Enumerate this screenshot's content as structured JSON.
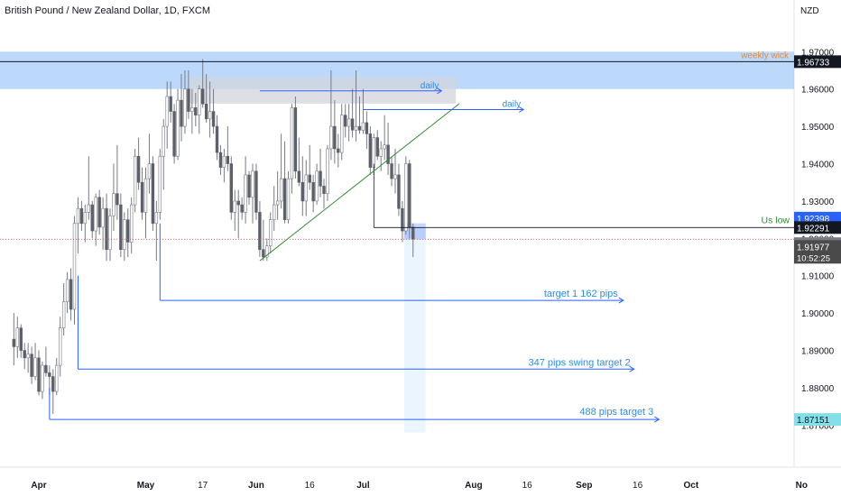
{
  "header": {
    "symbol_title": "British Pound / New Zealand Dollar, 1D, FXCM",
    "currency": "NZD"
  },
  "colors": {
    "bull": "#ffffff",
    "bear": "#5d606b",
    "wick": "#787b86",
    "axis_text": "#131722",
    "zone_blue": "#90bff9",
    "zone_grey": "#d1d4dc",
    "line_blue": "#2962ff",
    "line_green": "#388e3c",
    "text_blue": "#2f8ce0",
    "text_orange": "#e88a2e",
    "price_blue_label": "#2962ff",
    "price_black_label": "#131722",
    "price_grey_label": "#787b86",
    "price_dark_grey_label": "#4a4a4a",
    "target_label_bg": "#84e0e8"
  },
  "chart_data": {
    "type": "candlestick",
    "title": "British Pound / New Zealand Dollar, 1D, FXCM",
    "y_unit": "NZD",
    "y_ticks": [
      "1.97000",
      "1.96000",
      "1.95000",
      "1.94000",
      "1.93000",
      "1.92000",
      "1.91000",
      "1.90000",
      "1.89000",
      "1.88000",
      "1.87000"
    ],
    "ylim": [
      1.8655,
      1.9737
    ],
    "x_ticks": [
      "Apr",
      "May",
      "17",
      "Jun",
      "16",
      "Jul",
      "Aug",
      "16",
      "Sep",
      "16",
      "Oct",
      "No"
    ],
    "x_tick_days": [
      0,
      30,
      46,
      61,
      76,
      91,
      122,
      137,
      153,
      168,
      183,
      214
    ],
    "candles": [
      {
        "d": -7,
        "o": 1.893,
        "h": 1.9,
        "l": 1.886,
        "c": 1.891
      },
      {
        "d": -6,
        "o": 1.891,
        "h": 1.899,
        "l": 1.888,
        "c": 1.896
      },
      {
        "d": -5,
        "o": 1.896,
        "h": 1.897,
        "l": 1.888,
        "c": 1.89
      },
      {
        "d": -4,
        "o": 1.89,
        "h": 1.892,
        "l": 1.885,
        "c": 1.888
      },
      {
        "d": -3,
        "o": 1.888,
        "h": 1.892,
        "l": 1.884,
        "c": 1.889
      },
      {
        "d": -2,
        "o": 1.889,
        "h": 1.891,
        "l": 1.881,
        "c": 1.883
      },
      {
        "d": -1,
        "o": 1.883,
        "h": 1.892,
        "l": 1.882,
        "c": 1.888
      },
      {
        "d": 0,
        "o": 1.888,
        "h": 1.89,
        "l": 1.878,
        "c": 1.879
      },
      {
        "d": 1,
        "o": 1.879,
        "h": 1.887,
        "l": 1.877,
        "c": 1.886
      },
      {
        "d": 2,
        "o": 1.886,
        "h": 1.891,
        "l": 1.883,
        "c": 1.884
      },
      {
        "d": 3,
        "o": 1.884,
        "h": 1.886,
        "l": 1.878,
        "c": 1.883
      },
      {
        "d": 4,
        "o": 1.883,
        "h": 1.885,
        "l": 1.873,
        "c": 1.879
      },
      {
        "d": 5,
        "o": 1.879,
        "h": 1.888,
        "l": 1.878,
        "c": 1.886
      },
      {
        "d": 6,
        "o": 1.886,
        "h": 1.899,
        "l": 1.883,
        "c": 1.896
      },
      {
        "d": 7,
        "o": 1.896,
        "h": 1.908,
        "l": 1.894,
        "c": 1.903
      },
      {
        "d": 8,
        "o": 1.903,
        "h": 1.911,
        "l": 1.9,
        "c": 1.909
      },
      {
        "d": 9,
        "o": 1.909,
        "h": 1.912,
        "l": 1.898,
        "c": 1.901
      },
      {
        "d": 10,
        "o": 1.901,
        "h": 1.926,
        "l": 1.897,
        "c": 1.924
      },
      {
        "d": 11,
        "o": 1.924,
        "h": 1.931,
        "l": 1.916,
        "c": 1.928
      },
      {
        "d": 12,
        "o": 1.928,
        "h": 1.93,
        "l": 1.922,
        "c": 1.924
      },
      {
        "d": 13,
        "o": 1.924,
        "h": 1.929,
        "l": 1.919,
        "c": 1.927
      },
      {
        "d": 14,
        "o": 1.927,
        "h": 1.942,
        "l": 1.925,
        "c": 1.929
      },
      {
        "d": 15,
        "o": 1.929,
        "h": 1.93,
        "l": 1.92,
        "c": 1.922
      },
      {
        "d": 16,
        "o": 1.922,
        "h": 1.932,
        "l": 1.918,
        "c": 1.931
      },
      {
        "d": 17,
        "o": 1.931,
        "h": 1.933,
        "l": 1.921,
        "c": 1.923
      },
      {
        "d": 18,
        "o": 1.923,
        "h": 1.931,
        "l": 1.917,
        "c": 1.928
      },
      {
        "d": 19,
        "o": 1.928,
        "h": 1.932,
        "l": 1.914,
        "c": 1.917
      },
      {
        "d": 20,
        "o": 1.917,
        "h": 1.928,
        "l": 1.914,
        "c": 1.926
      },
      {
        "d": 21,
        "o": 1.926,
        "h": 1.94,
        "l": 1.922,
        "c": 1.932
      },
      {
        "d": 22,
        "o": 1.932,
        "h": 1.945,
        "l": 1.925,
        "c": 1.929
      },
      {
        "d": 23,
        "o": 1.929,
        "h": 1.932,
        "l": 1.915,
        "c": 1.917
      },
      {
        "d": 24,
        "o": 1.917,
        "h": 1.927,
        "l": 1.914,
        "c": 1.925
      },
      {
        "d": 25,
        "o": 1.925,
        "h": 1.928,
        "l": 1.915,
        "c": 1.919
      },
      {
        "d": 26,
        "o": 1.919,
        "h": 1.931,
        "l": 1.916,
        "c": 1.929
      },
      {
        "d": 27,
        "o": 1.929,
        "h": 1.944,
        "l": 1.927,
        "c": 1.942
      },
      {
        "d": 28,
        "o": 1.942,
        "h": 1.947,
        "l": 1.933,
        "c": 1.935
      },
      {
        "d": 29,
        "o": 1.935,
        "h": 1.939,
        "l": 1.925,
        "c": 1.927
      },
      {
        "d": 30,
        "o": 1.927,
        "h": 1.939,
        "l": 1.92,
        "c": 1.936
      },
      {
        "d": 31,
        "o": 1.936,
        "h": 1.948,
        "l": 1.932,
        "c": 1.94
      },
      {
        "d": 32,
        "o": 1.94,
        "h": 1.942,
        "l": 1.922,
        "c": 1.924
      },
      {
        "d": 33,
        "o": 1.924,
        "h": 1.93,
        "l": 1.914,
        "c": 1.927
      },
      {
        "d": 34,
        "o": 1.927,
        "h": 1.944,
        "l": 1.925,
        "c": 1.942
      },
      {
        "d": 35,
        "o": 1.942,
        "h": 1.952,
        "l": 1.933,
        "c": 1.95
      },
      {
        "d": 36,
        "o": 1.95,
        "h": 1.962,
        "l": 1.944,
        "c": 1.958
      },
      {
        "d": 37,
        "o": 1.958,
        "h": 1.962,
        "l": 1.951,
        "c": 1.954
      },
      {
        "d": 38,
        "o": 1.954,
        "h": 1.956,
        "l": 1.94,
        "c": 1.942
      },
      {
        "d": 39,
        "o": 1.942,
        "h": 1.96,
        "l": 1.941,
        "c": 1.957
      },
      {
        "d": 40,
        "o": 1.957,
        "h": 1.964,
        "l": 1.946,
        "c": 1.95
      },
      {
        "d": 41,
        "o": 1.95,
        "h": 1.965,
        "l": 1.948,
        "c": 1.96
      },
      {
        "d": 42,
        "o": 1.96,
        "h": 1.965,
        "l": 1.952,
        "c": 1.954
      },
      {
        "d": 43,
        "o": 1.954,
        "h": 1.96,
        "l": 1.948,
        "c": 1.955
      },
      {
        "d": 44,
        "o": 1.955,
        "h": 1.959,
        "l": 1.95,
        "c": 1.953
      },
      {
        "d": 45,
        "o": 1.953,
        "h": 1.961,
        "l": 1.948,
        "c": 1.96
      },
      {
        "d": 46,
        "o": 1.96,
        "h": 1.968,
        "l": 1.955,
        "c": 1.956
      },
      {
        "d": 47,
        "o": 1.956,
        "h": 1.964,
        "l": 1.951,
        "c": 1.952
      },
      {
        "d": 48,
        "o": 1.952,
        "h": 1.962,
        "l": 1.947,
        "c": 1.954
      },
      {
        "d": 49,
        "o": 1.954,
        "h": 1.96,
        "l": 1.948,
        "c": 1.95
      },
      {
        "d": 50,
        "o": 1.95,
        "h": 1.953,
        "l": 1.941,
        "c": 1.943
      },
      {
        "d": 51,
        "o": 1.943,
        "h": 1.945,
        "l": 1.937,
        "c": 1.939
      },
      {
        "d": 52,
        "o": 1.939,
        "h": 1.944,
        "l": 1.935,
        "c": 1.942
      },
      {
        "d": 53,
        "o": 1.942,
        "h": 1.95,
        "l": 1.938,
        "c": 1.94
      },
      {
        "d": 54,
        "o": 1.94,
        "h": 1.942,
        "l": 1.925,
        "c": 1.927
      },
      {
        "d": 55,
        "o": 1.927,
        "h": 1.933,
        "l": 1.922,
        "c": 1.93
      },
      {
        "d": 56,
        "o": 1.93,
        "h": 1.933,
        "l": 1.92,
        "c": 1.929
      },
      {
        "d": 57,
        "o": 1.929,
        "h": 1.931,
        "l": 1.925,
        "c": 1.927
      },
      {
        "d": 58,
        "o": 1.927,
        "h": 1.942,
        "l": 1.924,
        "c": 1.937
      },
      {
        "d": 59,
        "o": 1.937,
        "h": 1.938,
        "l": 1.929,
        "c": 1.931
      },
      {
        "d": 60,
        "o": 1.931,
        "h": 1.94,
        "l": 1.924,
        "c": 1.938
      },
      {
        "d": 61,
        "o": 1.938,
        "h": 1.94,
        "l": 1.925,
        "c": 1.927
      },
      {
        "d": 62,
        "o": 1.927,
        "h": 1.93,
        "l": 1.915,
        "c": 1.917
      },
      {
        "d": 63,
        "o": 1.917,
        "h": 1.925,
        "l": 1.914,
        "c": 1.915
      },
      {
        "d": 64,
        "o": 1.915,
        "h": 1.92,
        "l": 1.914,
        "c": 1.918
      },
      {
        "d": 65,
        "o": 1.918,
        "h": 1.927,
        "l": 1.916,
        "c": 1.925
      },
      {
        "d": 66,
        "o": 1.925,
        "h": 1.934,
        "l": 1.922,
        "c": 1.929
      },
      {
        "d": 67,
        "o": 1.929,
        "h": 1.938,
        "l": 1.925,
        "c": 1.93
      },
      {
        "d": 68,
        "o": 1.93,
        "h": 1.948,
        "l": 1.928,
        "c": 1.936
      },
      {
        "d": 69,
        "o": 1.936,
        "h": 1.946,
        "l": 1.924,
        "c": 1.925
      },
      {
        "d": 70,
        "o": 1.925,
        "h": 1.938,
        "l": 1.924,
        "c": 1.936
      },
      {
        "d": 71,
        "o": 1.936,
        "h": 1.956,
        "l": 1.932,
        "c": 1.955
      },
      {
        "d": 72,
        "o": 1.955,
        "h": 1.958,
        "l": 1.936,
        "c": 1.938
      },
      {
        "d": 73,
        "o": 1.938,
        "h": 1.947,
        "l": 1.934,
        "c": 1.935
      },
      {
        "d": 74,
        "o": 1.935,
        "h": 1.942,
        "l": 1.926,
        "c": 1.93
      },
      {
        "d": 75,
        "o": 1.93,
        "h": 1.941,
        "l": 1.926,
        "c": 1.937
      },
      {
        "d": 76,
        "o": 1.937,
        "h": 1.945,
        "l": 1.933,
        "c": 1.935
      },
      {
        "d": 77,
        "o": 1.935,
        "h": 1.937,
        "l": 1.927,
        "c": 1.93
      },
      {
        "d": 78,
        "o": 1.93,
        "h": 1.94,
        "l": 1.929,
        "c": 1.938
      },
      {
        "d": 79,
        "o": 1.938,
        "h": 1.944,
        "l": 1.931,
        "c": 1.934
      },
      {
        "d": 80,
        "o": 1.934,
        "h": 1.936,
        "l": 1.928,
        "c": 1.932
      },
      {
        "d": 81,
        "o": 1.932,
        "h": 1.945,
        "l": 1.93,
        "c": 1.944
      },
      {
        "d": 82,
        "o": 1.944,
        "h": 1.965,
        "l": 1.941,
        "c": 1.95
      },
      {
        "d": 83,
        "o": 1.95,
        "h": 1.957,
        "l": 1.94,
        "c": 1.944
      },
      {
        "d": 84,
        "o": 1.944,
        "h": 1.948,
        "l": 1.939,
        "c": 1.943
      },
      {
        "d": 85,
        "o": 1.943,
        "h": 1.956,
        "l": 1.941,
        "c": 1.953
      },
      {
        "d": 86,
        "o": 1.953,
        "h": 1.956,
        "l": 1.947,
        "c": 1.95
      },
      {
        "d": 87,
        "o": 1.95,
        "h": 1.956,
        "l": 1.946,
        "c": 1.952
      },
      {
        "d": 88,
        "o": 1.952,
        "h": 1.96,
        "l": 1.947,
        "c": 1.949
      },
      {
        "d": 89,
        "o": 1.949,
        "h": 1.965,
        "l": 1.946,
        "c": 1.95
      },
      {
        "d": 90,
        "o": 1.95,
        "h": 1.958,
        "l": 1.948,
        "c": 1.949
      },
      {
        "d": 91,
        "o": 1.949,
        "h": 1.96,
        "l": 1.948,
        "c": 1.951
      },
      {
        "d": 92,
        "o": 1.951,
        "h": 1.954,
        "l": 1.944,
        "c": 1.948
      },
      {
        "d": 93,
        "o": 1.948,
        "h": 1.95,
        "l": 1.937,
        "c": 1.939
      },
      {
        "d": 94,
        "o": 1.939,
        "h": 1.948,
        "l": 1.937,
        "c": 1.947
      },
      {
        "d": 95,
        "o": 1.947,
        "h": 1.949,
        "l": 1.941,
        "c": 1.942
      },
      {
        "d": 96,
        "o": 1.942,
        "h": 1.946,
        "l": 1.938,
        "c": 1.944
      },
      {
        "d": 97,
        "o": 1.944,
        "h": 1.953,
        "l": 1.941,
        "c": 1.945
      },
      {
        "d": 98,
        "o": 1.945,
        "h": 1.951,
        "l": 1.937,
        "c": 1.94
      },
      {
        "d": 99,
        "o": 1.94,
        "h": 1.942,
        "l": 1.934,
        "c": 1.936
      },
      {
        "d": 100,
        "o": 1.936,
        "h": 1.944,
        "l": 1.932,
        "c": 1.937
      },
      {
        "d": 101,
        "o": 1.937,
        "h": 1.94,
        "l": 1.926,
        "c": 1.928
      },
      {
        "d": 102,
        "o": 1.928,
        "h": 1.93,
        "l": 1.919,
        "c": 1.922
      },
      {
        "d": 103,
        "o": 1.922,
        "h": 1.942,
        "l": 1.921,
        "c": 1.94
      },
      {
        "d": 104,
        "o": 1.94,
        "h": 1.941,
        "l": 1.92,
        "c": 1.923
      },
      {
        "d": 105,
        "o": 1.923,
        "h": 1.924,
        "l": 1.915,
        "c": 1.9198
      }
    ],
    "zones": [
      {
        "name": "weekly wick zone",
        "y0": 1.96,
        "y1": 1.97,
        "d0": -10,
        "d1": 214
      },
      {
        "name": "daily zone",
        "y0": 1.9561,
        "y1": 1.9631,
        "d0": 42,
        "d1": 117
      }
    ],
    "levels": [
      {
        "label": "1.96733",
        "value": 1.96733
      },
      {
        "label": "1.92398",
        "value": 1.92398
      },
      {
        "label": "1.92291",
        "value": 1.92291
      },
      {
        "label": "1.92028",
        "value": 1.92028
      },
      {
        "label": "1.91977",
        "value": 1.91977
      },
      {
        "label": "1.87151",
        "value": 1.87151
      }
    ],
    "annotations": [
      {
        "text": "weekly wick",
        "y": 1.969
      },
      {
        "text": "daily",
        "y": 1.96
      },
      {
        "text": "daily",
        "y": 1.955
      },
      {
        "text": "Us low",
        "y": 1.924
      },
      {
        "text": "target 1 162 pips",
        "y": 1.904
      },
      {
        "text": "347 pips swing target 2",
        "y": 1.885
      },
      {
        "text": "488 pips target 3",
        "y": 1.872
      }
    ],
    "countdown": "10:52:25"
  }
}
